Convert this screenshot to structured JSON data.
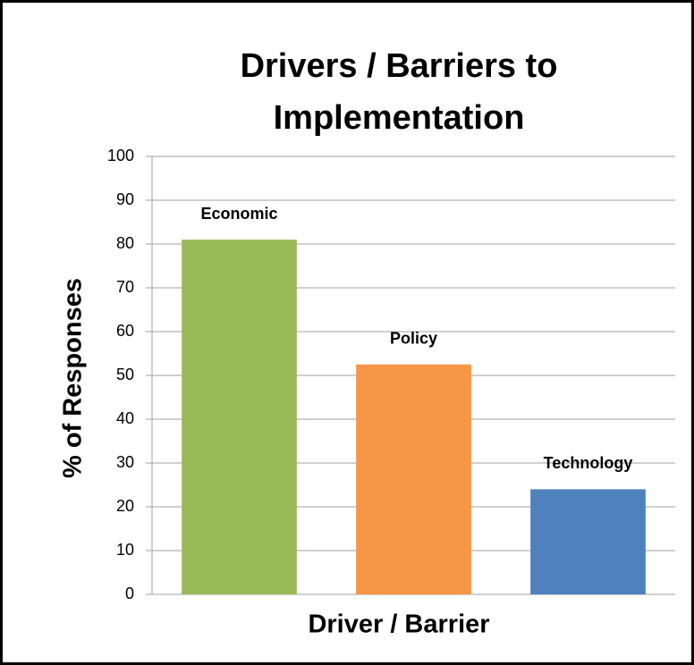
{
  "chart_data": {
    "type": "bar",
    "title": "Drivers / Barriers to Implementation",
    "categories": [
      "Economic",
      "Policy",
      "Technology"
    ],
    "values": [
      81,
      52.5,
      24
    ],
    "colors": [
      "#9bbb59",
      "#f79646",
      "#4f81bd"
    ],
    "xlabel": "Driver / Barrier",
    "ylabel": "% of Responses",
    "ylim": [
      0,
      100
    ],
    "yticks": [
      0,
      10,
      20,
      30,
      40,
      50,
      60,
      70,
      80,
      90,
      100
    ],
    "grid": true
  }
}
